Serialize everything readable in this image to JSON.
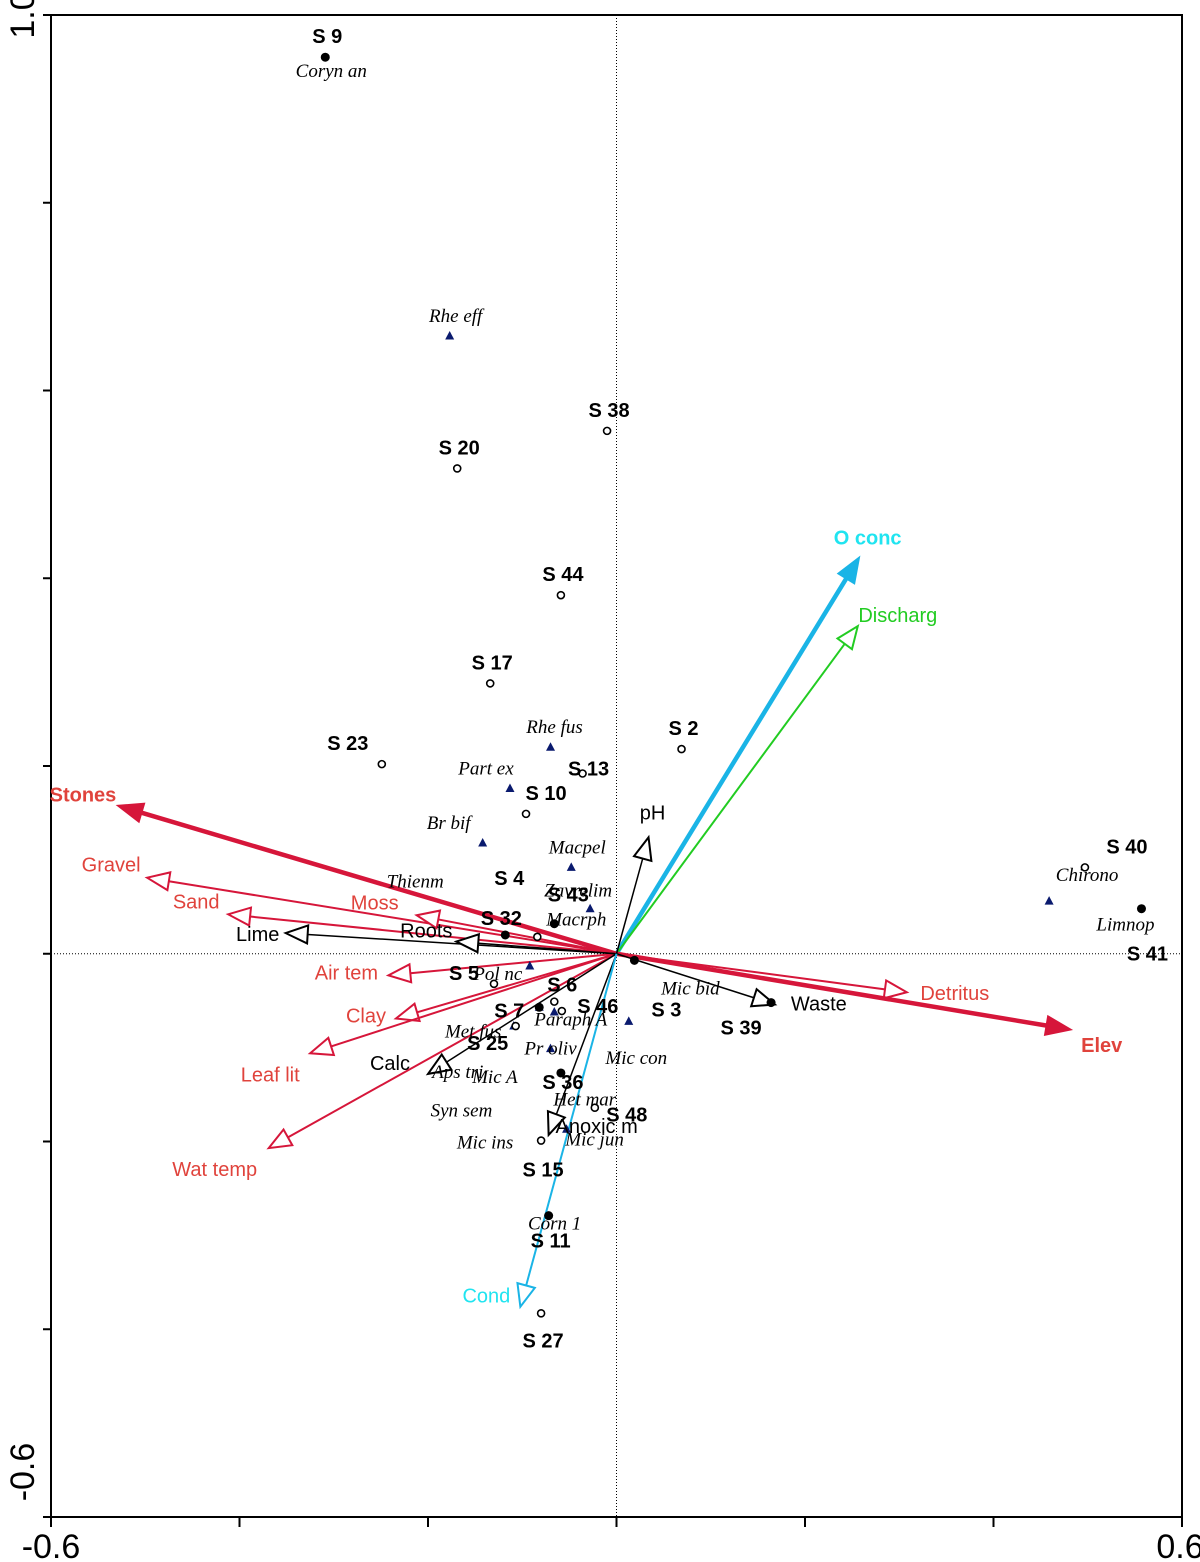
{
  "chart_data": {
    "type": "scatter",
    "title": "",
    "xlabel": "",
    "ylabel": "",
    "xlim": [
      -0.6,
      0.6
    ],
    "ylim": [
      -0.6,
      1.0
    ],
    "x_ticks": [
      -0.6,
      0.6
    ],
    "y_ticks": [
      -0.6,
      1.0
    ],
    "x_tick_labels": [
      "-0.6",
      "0.6"
    ],
    "y_tick_labels": [
      "-0.6",
      "1.0"
    ],
    "reference_lines": {
      "x": 0,
      "y": 0,
      "style": "dotted"
    },
    "grid": false,
    "legend": "none",
    "colors": {
      "red_vector": "#d6163a",
      "red_label": "#e0433c",
      "cyan_vector": "#1ab4e6",
      "cyan_label": "#20e4f0",
      "green": "#22cc22",
      "black": "#000000",
      "species_marker": "#0a1a6e"
    },
    "sites": [
      {
        "label": "S 9",
        "x": -0.309,
        "y": 0.955,
        "marker": "filled"
      },
      {
        "label": "S 38",
        "x": -0.01,
        "y": 0.557,
        "marker": "open"
      },
      {
        "label": "S 20",
        "x": -0.169,
        "y": 0.517,
        "marker": "open"
      },
      {
        "label": "S 44",
        "x": -0.059,
        "y": 0.382,
        "marker": "open"
      },
      {
        "label": "S 17",
        "x": -0.134,
        "y": 0.288,
        "marker": "open"
      },
      {
        "label": "S 2",
        "x": 0.069,
        "y": 0.218,
        "marker": "open"
      },
      {
        "label": "S 23",
        "x": -0.249,
        "y": 0.202,
        "marker": "open"
      },
      {
        "label": "S 13",
        "x": -0.036,
        "y": 0.192,
        "marker": "open"
      },
      {
        "label": "S 10",
        "x": -0.096,
        "y": 0.149,
        "marker": "open"
      },
      {
        "label": "S 40",
        "x": 0.497,
        "y": 0.092,
        "marker": "open"
      },
      {
        "label": "S 4",
        "x": -0.118,
        "y": 0.02,
        "marker": "filled"
      },
      {
        "label": "S 43",
        "x": -0.066,
        "y": 0.032,
        "marker": "filled"
      },
      {
        "label": "S 32",
        "x": -0.084,
        "y": 0.018,
        "marker": "open"
      },
      {
        "label": "S 41",
        "x": 0.557,
        "y": 0.048,
        "marker": "filled"
      },
      {
        "label": "S 5",
        "x": -0.13,
        "y": -0.032,
        "marker": "open"
      },
      {
        "label": "S 6",
        "x": -0.066,
        "y": -0.051,
        "marker": "open"
      },
      {
        "label": "S 7",
        "x": -0.082,
        "y": -0.057,
        "marker": "filled"
      },
      {
        "label": "S 46",
        "x": -0.058,
        "y": -0.061,
        "marker": "open"
      },
      {
        "label": "S 3",
        "x": 0.019,
        "y": -0.007,
        "marker": "filled"
      },
      {
        "label": "S 39",
        "x": 0.164,
        "y": -0.052,
        "marker": "filled"
      },
      {
        "label": "S 25",
        "x": -0.107,
        "y": -0.077,
        "marker": "open"
      },
      {
        "label": "S 36",
        "x": -0.059,
        "y": -0.127,
        "marker": "filled"
      },
      {
        "label": "S 48",
        "x": -0.023,
        "y": -0.164,
        "marker": "open"
      },
      {
        "label": "S 15",
        "x": -0.08,
        "y": -0.199,
        "marker": "open"
      },
      {
        "label": "S 11",
        "x": -0.072,
        "y": -0.279,
        "marker": "filled"
      },
      {
        "label": "S 27",
        "x": -0.08,
        "y": -0.383,
        "marker": "open"
      }
    ],
    "species": [
      {
        "label": "Coryn an",
        "x": -0.309,
        "y": 0.955
      },
      {
        "label": "Rhe eff",
        "x": -0.177,
        "y": 0.658
      },
      {
        "label": "Rhe fus",
        "x": -0.07,
        "y": 0.22
      },
      {
        "label": "Part ex",
        "x": -0.113,
        "y": 0.176
      },
      {
        "label": "Br bif",
        "x": -0.142,
        "y": 0.118
      },
      {
        "label": "Macpel",
        "x": -0.048,
        "y": 0.092
      },
      {
        "label": "Thienm",
        "x": -0.169,
        "y": 0.06
      },
      {
        "label": "Zavrelim",
        "x": -0.028,
        "y": 0.048
      },
      {
        "label": "Chirono",
        "x": 0.459,
        "y": 0.056
      },
      {
        "label": "Limnop",
        "x": 0.557,
        "y": 0.048
      },
      {
        "label": "Macrph",
        "x": -0.066,
        "y": 0.032
      },
      {
        "label": "Pol nc",
        "x": -0.092,
        "y": -0.013
      },
      {
        "label": "Mic bid",
        "x": 0.019,
        "y": -0.007
      },
      {
        "label": "Met fus",
        "x": -0.082,
        "y": -0.057
      },
      {
        "label": "Paraph A",
        "x": 0.013,
        "y": -0.072
      },
      {
        "label": "Aps tri",
        "x": -0.109,
        "y": -0.077
      },
      {
        "label": "Pr oliv",
        "x": -0.07,
        "y": -0.101
      },
      {
        "label": "Mic con",
        "x": -0.066,
        "y": -0.062
      },
      {
        "label": "Mic A",
        "x": -0.059,
        "y": -0.127
      },
      {
        "label": "Het mar",
        "x": -0.023,
        "y": -0.164
      },
      {
        "label": "Syn sem",
        "x": -0.086,
        "y": -0.154
      },
      {
        "label": "Mic ins",
        "x": -0.08,
        "y": -0.199
      },
      {
        "label": "Mic jun",
        "x": -0.053,
        "y": -0.187
      },
      {
        "label": "Corn 1",
        "x": -0.072,
        "y": -0.279
      }
    ],
    "env_vectors": [
      {
        "label": "O conc",
        "x": 0.258,
        "y": 0.423,
        "color": "#1ab4e6",
        "label_color": "#20e4f0",
        "head": "filled",
        "bold": true,
        "width": 4.5
      },
      {
        "label": "Discharg",
        "x": 0.256,
        "y": 0.349,
        "color": "#22cc22",
        "label_color": "#22cc22",
        "head": "open",
        "bold": false,
        "width": 2
      },
      {
        "label": "Stones",
        "x": -0.53,
        "y": 0.158,
        "color": "#d6163a",
        "label_color": "#e0433c",
        "head": "filled",
        "bold": true,
        "width": 4.5
      },
      {
        "label": "Gravel",
        "x": -0.498,
        "y": 0.081,
        "color": "#d6163a",
        "label_color": "#e0433c",
        "head": "open",
        "bold": false,
        "width": 2
      },
      {
        "label": "Sand",
        "x": -0.412,
        "y": 0.042,
        "color": "#d6163a",
        "label_color": "#e0433c",
        "head": "open",
        "bold": false,
        "width": 2
      },
      {
        "label": "Moss",
        "x": -0.212,
        "y": 0.041,
        "color": "#d6163a",
        "label_color": "#e0433c",
        "head": "open",
        "bold": false,
        "width": 2
      },
      {
        "label": "Air tem",
        "x": -0.242,
        "y": -0.023,
        "color": "#d6163a",
        "label_color": "#e0433c",
        "head": "open",
        "bold": false,
        "width": 2
      },
      {
        "label": "Clay",
        "x": -0.234,
        "y": -0.069,
        "color": "#d6163a",
        "label_color": "#e0433c",
        "head": "open",
        "bold": false,
        "width": 2
      },
      {
        "label": "Leaf lit",
        "x": -0.325,
        "y": -0.106,
        "color": "#d6163a",
        "label_color": "#e0433c",
        "head": "open",
        "bold": false,
        "width": 2
      },
      {
        "label": "Wat temp",
        "x": -0.369,
        "y": -0.207,
        "color": "#d6163a",
        "label_color": "#e0433c",
        "head": "open",
        "bold": false,
        "width": 2
      },
      {
        "label": "Detritus",
        "x": 0.308,
        "y": -0.041,
        "color": "#d6163a",
        "label_color": "#e0433c",
        "head": "open",
        "bold": false,
        "width": 2
      },
      {
        "label": "Elev",
        "x": 0.483,
        "y": -0.081,
        "color": "#d6163a",
        "label_color": "#e0433c",
        "head": "filled",
        "bold": true,
        "width": 4.5
      },
      {
        "label": "Lime",
        "x": -0.351,
        "y": 0.022,
        "color": "#000000",
        "label_color": "#000000",
        "head": "open",
        "bold": false,
        "width": 1.5
      },
      {
        "label": "Roots",
        "x": -0.17,
        "y": 0.013,
        "color": "#000000",
        "label_color": "#000000",
        "head": "open",
        "bold": false,
        "width": 1.5
      },
      {
        "label": "pH",
        "x": 0.034,
        "y": 0.124,
        "color": "#000000",
        "label_color": "#000000",
        "head": "open",
        "bold": false,
        "width": 1.5
      },
      {
        "label": "Waste",
        "x": 0.168,
        "y": -0.054,
        "color": "#000000",
        "label_color": "#000000",
        "head": "open",
        "bold": false,
        "width": 1.5
      },
      {
        "label": "Calc",
        "x": -0.2,
        "y": -0.128,
        "color": "#000000",
        "label_color": "#000000",
        "head": "open",
        "bold": false,
        "width": 1.5
      },
      {
        "label": "Anoxic m",
        "x": -0.072,
        "y": -0.193,
        "color": "#000000",
        "label_color": "#000000",
        "head": "open",
        "bold": false,
        "width": 1.5
      },
      {
        "label": "Cond",
        "x": -0.102,
        "y": -0.376,
        "color": "#1ab4e6",
        "label_color": "#20e4f0",
        "head": "open",
        "bold": false,
        "width": 2
      }
    ]
  }
}
